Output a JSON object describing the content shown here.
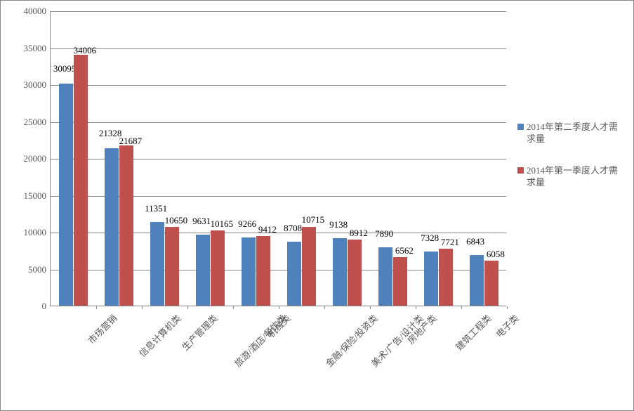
{
  "chart": {
    "type": "bar",
    "background_color": "#ffffff",
    "grid_color": "#878787",
    "axis_color": "#878787",
    "tick_font_size": 13,
    "tick_color": "#595959",
    "label_color": "#000000",
    "label_font_size": 13,
    "ylim_min": 0,
    "ylim_max": 40000,
    "ytick_step": 5000,
    "yticks": [
      0,
      5000,
      10000,
      15000,
      20000,
      25000,
      30000,
      35000,
      40000
    ],
    "categories": [
      "市场营销",
      "信息计算机类",
      "生产管理类",
      "旅游/酒店/餐饮类",
      "机械类",
      "金融/保险/投资类",
      "美术/广告/设计类",
      "房地产类",
      "建筑工程类",
      "电子类"
    ],
    "series": [
      {
        "name": "2014年第二季度人才需求量",
        "color": "#4f81bd",
        "values": [
          30095,
          21328,
          11351,
          9631,
          9266,
          8708,
          9138,
          7890,
          7328,
          6843
        ]
      },
      {
        "name": "2014年第一季度人才需求量",
        "color": "#c0504d",
        "values": [
          34006,
          21687,
          10650,
          10165,
          9412,
          10715,
          8912,
          6562,
          7721,
          6058
        ]
      }
    ],
    "bar_width_ratio": 0.32,
    "group_gap_ratio": 0.36,
    "x_label_rotation": -45
  }
}
